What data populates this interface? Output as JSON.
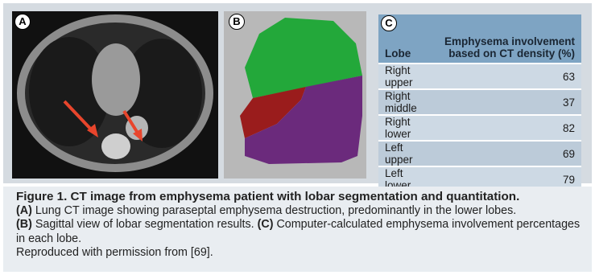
{
  "figure": {
    "panel_labels": [
      "A",
      "B",
      "C"
    ],
    "table": {
      "headers": [
        "Lobe",
        "Emphysema involvement based on CT density (%)"
      ],
      "rows": [
        [
          "Right upper",
          63
        ],
        [
          "Right middle",
          37
        ],
        [
          "Right lower",
          82
        ],
        [
          "Left upper",
          69
        ],
        [
          "Left lower",
          79
        ]
      ]
    }
  },
  "caption": {
    "title": "Figure 1. CT image from emphysema patient with lobar segmentation and quantitation.",
    "parts": [
      {
        "label": "(A)",
        "text": "Lung CT image showing paraseptal emphysema destruction, predominantly in the lower lobes."
      },
      {
        "label": "(B)",
        "text": "Sagittal view of lobar segmentation results."
      },
      {
        "label": "(C)",
        "text": "Computer-calculated emphysema involvement percentages in each lobe."
      }
    ],
    "credit": "Reproduced with permission from [69]."
  }
}
